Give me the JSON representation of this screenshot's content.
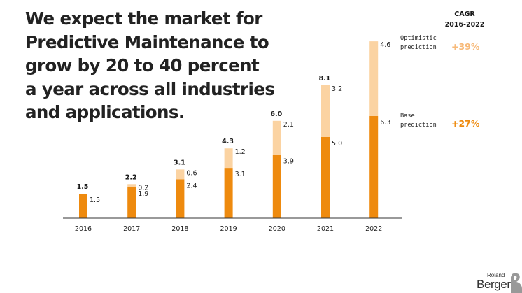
{
  "headline": {
    "lines": [
      "We expect the market for",
      "Predictive Maintenance to",
      "grow by 20 to 40 percent",
      "a year across all industries",
      "and applications."
    ]
  },
  "cagr": {
    "title_line1": "CAGR",
    "title_line2": "2016-2022",
    "optimistic_value": "+39%",
    "base_value": "+27%"
  },
  "legend": {
    "optimistic_line1": "Optimistic",
    "optimistic_line2": "prediction",
    "base_line1": "Base",
    "base_line2": "prediction"
  },
  "logo": {
    "line1": "Roland",
    "line2": "Berger"
  },
  "colors": {
    "base": "#EE8A0E",
    "optimistic": "#FBD3A2",
    "optimistic_text": "#F7B978",
    "base_text": "#EE8A0E",
    "axis": "#333333"
  },
  "chart_data": {
    "type": "bar",
    "stacked": true,
    "categories": [
      "2016",
      "2017",
      "2018",
      "2019",
      "2020",
      "2021",
      "2022"
    ],
    "series": [
      {
        "name": "Base prediction",
        "values": [
          1.5,
          1.9,
          2.4,
          3.1,
          3.9,
          5.0,
          6.3
        ]
      },
      {
        "name": "Optimistic prediction",
        "values": [
          0,
          0.2,
          0.6,
          1.2,
          2.1,
          3.2,
          4.6
        ]
      }
    ],
    "totals": [
      "1.5",
      "2.2",
      "3.1",
      "4.3",
      "6.0",
      "8.1",
      ""
    ],
    "base_labels": [
      "1.5",
      "1.9",
      "2.4",
      "3.1",
      "3.9",
      "5.0",
      "6.3"
    ],
    "optimistic_labels": [
      "",
      "0.2",
      "0.6",
      "1.2",
      "2.1",
      "3.2",
      "4.6"
    ],
    "ylim": [
      0,
      11
    ],
    "xlabel": "",
    "ylabel": ""
  }
}
